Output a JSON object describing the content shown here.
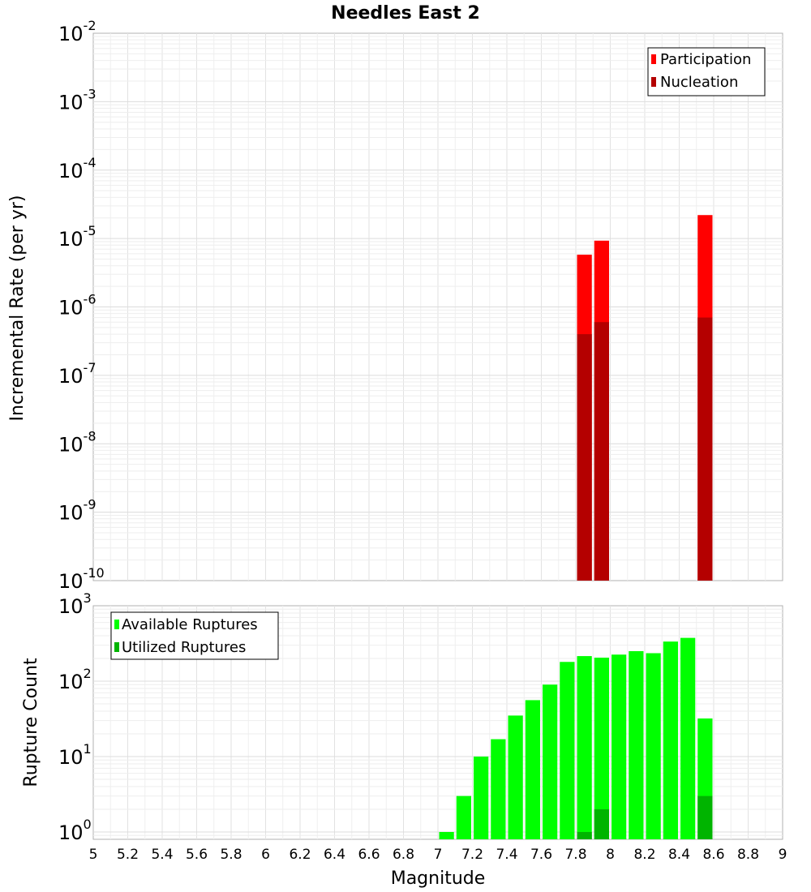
{
  "chart_data": [
    {
      "type": "bar",
      "title": "Needles East 2",
      "ylabel": "Incremental Rate (per yr)",
      "yscale": "log",
      "ylim": [
        1e-10,
        0.01
      ],
      "ytick_exponents": [
        "-10",
        "-9",
        "-8",
        "-7",
        "-6",
        "-5",
        "-4",
        "-3",
        "-2"
      ],
      "ytick_base": "10",
      "xlim": [
        5,
        9
      ],
      "bin_width": 0.1,
      "legend": {
        "placement": "top-right",
        "entries": [
          "Participation",
          "Nucleation"
        ]
      },
      "series": [
        {
          "name": "Participation",
          "color": "#ff0000",
          "x": [
            7.85,
            7.95,
            8.55
          ],
          "values": [
            5.8e-06,
            9.3e-06,
            2.2e-05
          ]
        },
        {
          "name": "Nucleation",
          "color": "#b40000",
          "x": [
            7.85,
            7.95,
            8.55
          ],
          "values": [
            4e-07,
            6e-07,
            7e-07
          ]
        }
      ]
    },
    {
      "type": "bar",
      "ylabel": "Rupture Count",
      "xlabel": "Magnitude",
      "yscale": "log",
      "ylim": [
        0.8,
        1000
      ],
      "ytick_exponents": [
        "0",
        "1",
        "2",
        "3"
      ],
      "ytick_base": "10",
      "xlim": [
        5,
        9
      ],
      "xticks": [
        "5",
        "5.2",
        "5.4",
        "5.6",
        "5.8",
        "6",
        "6.2",
        "6.4",
        "6.6",
        "6.8",
        "7",
        "7.2",
        "7.4",
        "7.6",
        "7.8",
        "8",
        "8.2",
        "8.4",
        "8.6",
        "8.8",
        "9"
      ],
      "bin_width": 0.1,
      "legend": {
        "placement": "top-left",
        "entries": [
          "Available Ruptures",
          "Utilized Ruptures"
        ]
      },
      "series": [
        {
          "name": "Available Ruptures",
          "color": "#00ff00",
          "x": [
            7.05,
            7.15,
            7.25,
            7.35,
            7.45,
            7.55,
            7.65,
            7.75,
            7.85,
            7.95,
            8.05,
            8.15,
            8.25,
            8.35,
            8.45,
            8.55
          ],
          "values": [
            1,
            3,
            10,
            17,
            35,
            56,
            90,
            180,
            215,
            205,
            225,
            250,
            235,
            335,
            375,
            32
          ]
        },
        {
          "name": "Utilized Ruptures",
          "color": "#00b400",
          "x": [
            7.85,
            7.95,
            8.55
          ],
          "values": [
            1,
            2,
            3
          ]
        }
      ]
    }
  ]
}
